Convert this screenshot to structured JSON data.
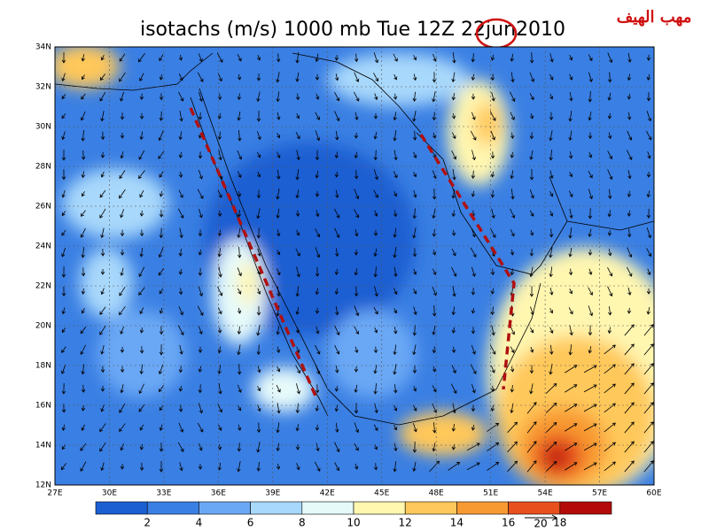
{
  "header": {
    "title": "isotachs (m/s) 1000 mb Tue 12Z 22jun2010",
    "annotation": "مهب الهيف"
  },
  "map": {
    "lat_labels": [
      "12N",
      "14N",
      "16N",
      "18N",
      "20N",
      "22N",
      "24N",
      "26N",
      "28N",
      "30N",
      "32N",
      "34N"
    ],
    "lon_labels": [
      "27E",
      "30E",
      "33E",
      "36E",
      "39E",
      "42E",
      "45E",
      "48E",
      "51E",
      "54E",
      "57E",
      "60E"
    ]
  },
  "colorbar": {
    "labels": [
      2,
      4,
      6,
      8,
      10,
      12,
      14,
      16,
      18
    ],
    "colors": [
      "#1b5fd2",
      "#3a7fe3",
      "#6aa8f5",
      "#a8d8fb",
      "#e6fafa",
      "#fff6b0",
      "#ffc85a",
      "#f89a32",
      "#e8501e",
      "#b40a0a"
    ]
  },
  "reference_vector": {
    "label": 20
  }
}
